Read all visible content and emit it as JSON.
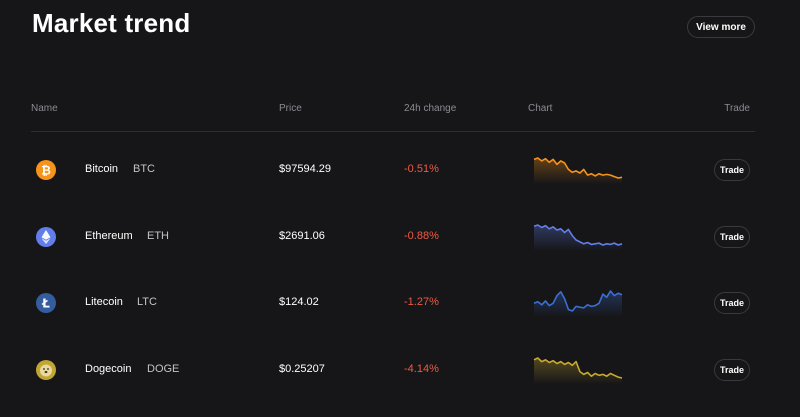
{
  "header": {
    "title": "Market trend",
    "view_more_label": "View more"
  },
  "table": {
    "columns": {
      "name": "Name",
      "price": "Price",
      "change": "24h change",
      "chart": "Chart",
      "trade": "Trade"
    },
    "rows": [
      {
        "name": "Bitcoin",
        "symbol": "BTC",
        "price": "$97594.29",
        "change": "-0.51%",
        "trade_label": "Trade",
        "icon": "bitcoin-icon",
        "icon_color": "#f7931a",
        "chart_color": "#f7931a",
        "spark": [
          62,
          64,
          60,
          63,
          58,
          62,
          55,
          60,
          57,
          48,
          44,
          46,
          43,
          48,
          40,
          42,
          39,
          42,
          40,
          41,
          40,
          38,
          36,
          37
        ]
      },
      {
        "name": "Ethereum",
        "symbol": "ETH",
        "price": "$2691.06",
        "change": "-0.88%",
        "trade_label": "Trade",
        "icon": "ethereum-icon",
        "icon_color": "#627eea",
        "chart_color": "#627eea",
        "spark": [
          70,
          72,
          68,
          71,
          66,
          69,
          64,
          66,
          60,
          65,
          55,
          48,
          45,
          42,
          44,
          41,
          42,
          43,
          40,
          42,
          41,
          43,
          40,
          42
        ]
      },
      {
        "name": "Litecoin",
        "symbol": "LTC",
        "price": "$124.02",
        "change": "-1.27%",
        "trade_label": "Trade",
        "icon": "litecoin-icon",
        "icon_color": "#345d9d",
        "chart_color": "#3b6fd6",
        "spark": [
          50,
          52,
          48,
          53,
          47,
          50,
          60,
          65,
          56,
          42,
          40,
          46,
          45,
          44,
          48,
          46,
          47,
          50,
          62,
          58,
          66,
          60,
          63,
          61
        ]
      },
      {
        "name": "Dogecoin",
        "symbol": "DOGE",
        "price": "$0.25207",
        "change": "-4.14%",
        "trade_label": "Trade",
        "icon": "dogecoin-icon",
        "icon_color": "#c2a633",
        "chart_color": "#c9a92e",
        "spark": [
          68,
          70,
          66,
          68,
          65,
          67,
          64,
          66,
          63,
          65,
          62,
          66,
          55,
          52,
          54,
          50,
          53,
          51,
          52,
          50,
          53,
          51,
          49,
          48
        ]
      }
    ]
  }
}
